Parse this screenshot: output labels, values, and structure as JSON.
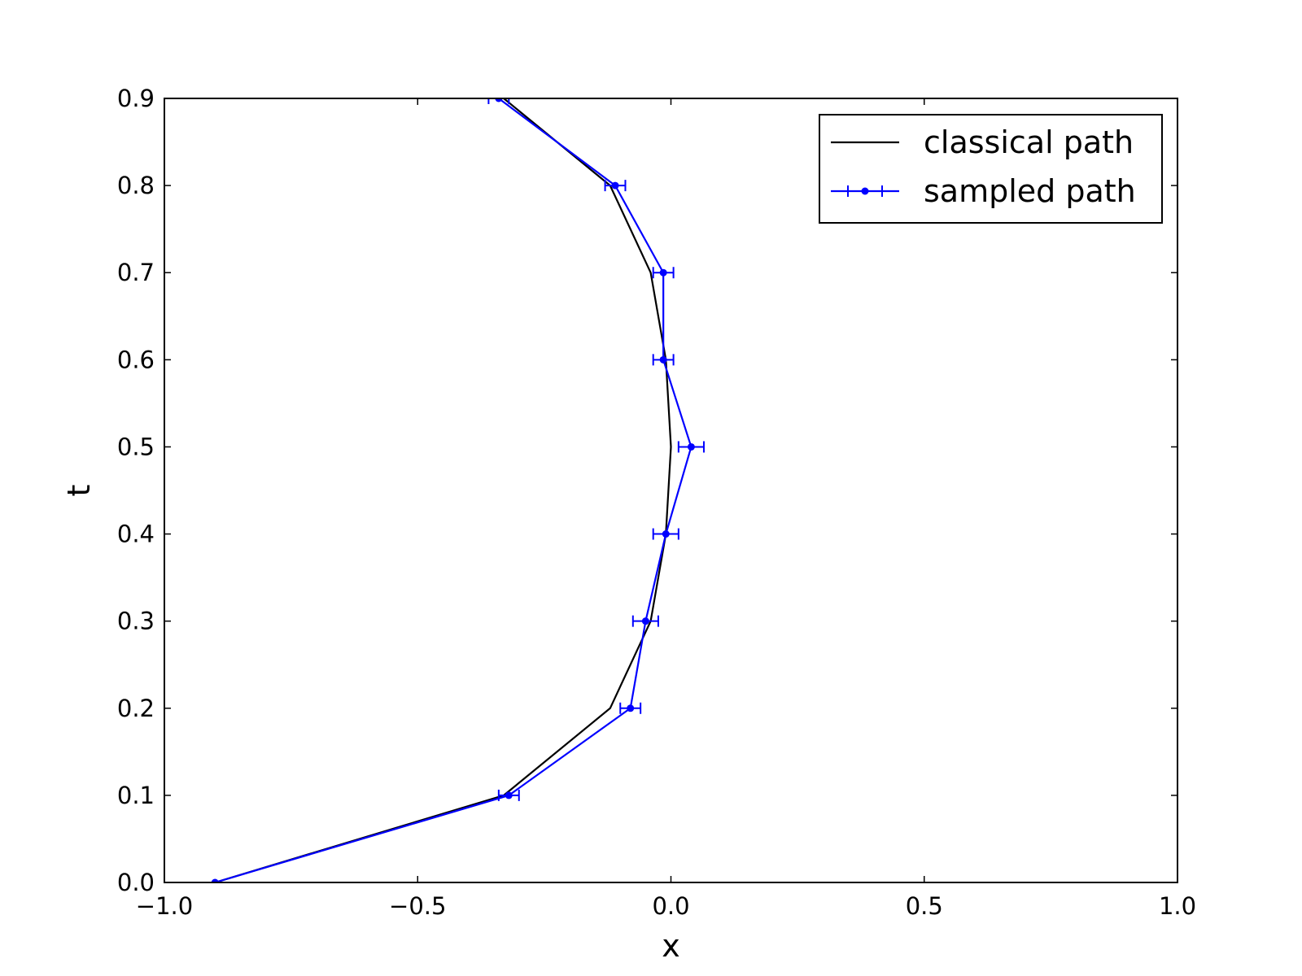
{
  "chart_data": {
    "type": "line",
    "title": "",
    "xlabel": "x",
    "ylabel": "t",
    "xlim": [
      -1.0,
      1.0
    ],
    "ylim": [
      0.0,
      0.9
    ],
    "xticks": [
      -1.0,
      -0.5,
      0.0,
      0.5,
      1.0
    ],
    "xtick_labels": [
      "−1.0",
      "−0.5",
      "0.0",
      "0.5",
      "1.0"
    ],
    "yticks": [
      0.0,
      0.1,
      0.2,
      0.3,
      0.4,
      0.5,
      0.6,
      0.7,
      0.8,
      0.9
    ],
    "ytick_labels": [
      "0.0",
      "0.1",
      "0.2",
      "0.3",
      "0.4",
      "0.5",
      "0.6",
      "0.7",
      "0.8",
      "0.9"
    ],
    "grid": false,
    "legend_position": "top-right",
    "series": [
      {
        "name": "classical path",
        "color": "#000000",
        "marker": "none",
        "points": [
          {
            "x": -0.9,
            "t": 0.0
          },
          {
            "x": -0.33,
            "t": 0.1
          },
          {
            "x": -0.12,
            "t": 0.2
          },
          {
            "x": -0.04,
            "t": 0.3
          },
          {
            "x": -0.01,
            "t": 0.4
          },
          {
            "x": 0.0,
            "t": 0.5
          },
          {
            "x": -0.01,
            "t": 0.6
          },
          {
            "x": -0.04,
            "t": 0.7
          },
          {
            "x": -0.12,
            "t": 0.8
          },
          {
            "x": -0.33,
            "t": 0.9
          }
        ]
      },
      {
        "name": "sampled path",
        "color": "#0000ff",
        "marker": "dot-with-xerr",
        "points": [
          {
            "x": -0.9,
            "t": 0.0,
            "xerr": 0.0
          },
          {
            "x": -0.32,
            "t": 0.1,
            "xerr": 0.02
          },
          {
            "x": -0.08,
            "t": 0.2,
            "xerr": 0.02
          },
          {
            "x": -0.05,
            "t": 0.3,
            "xerr": 0.025
          },
          {
            "x": -0.01,
            "t": 0.4,
            "xerr": 0.025
          },
          {
            "x": 0.04,
            "t": 0.5,
            "xerr": 0.025
          },
          {
            "x": -0.015,
            "t": 0.6,
            "xerr": 0.02
          },
          {
            "x": -0.015,
            "t": 0.7,
            "xerr": 0.02
          },
          {
            "x": -0.11,
            "t": 0.8,
            "xerr": 0.02
          },
          {
            "x": -0.34,
            "t": 0.9,
            "xerr": 0.02
          }
        ]
      }
    ]
  }
}
